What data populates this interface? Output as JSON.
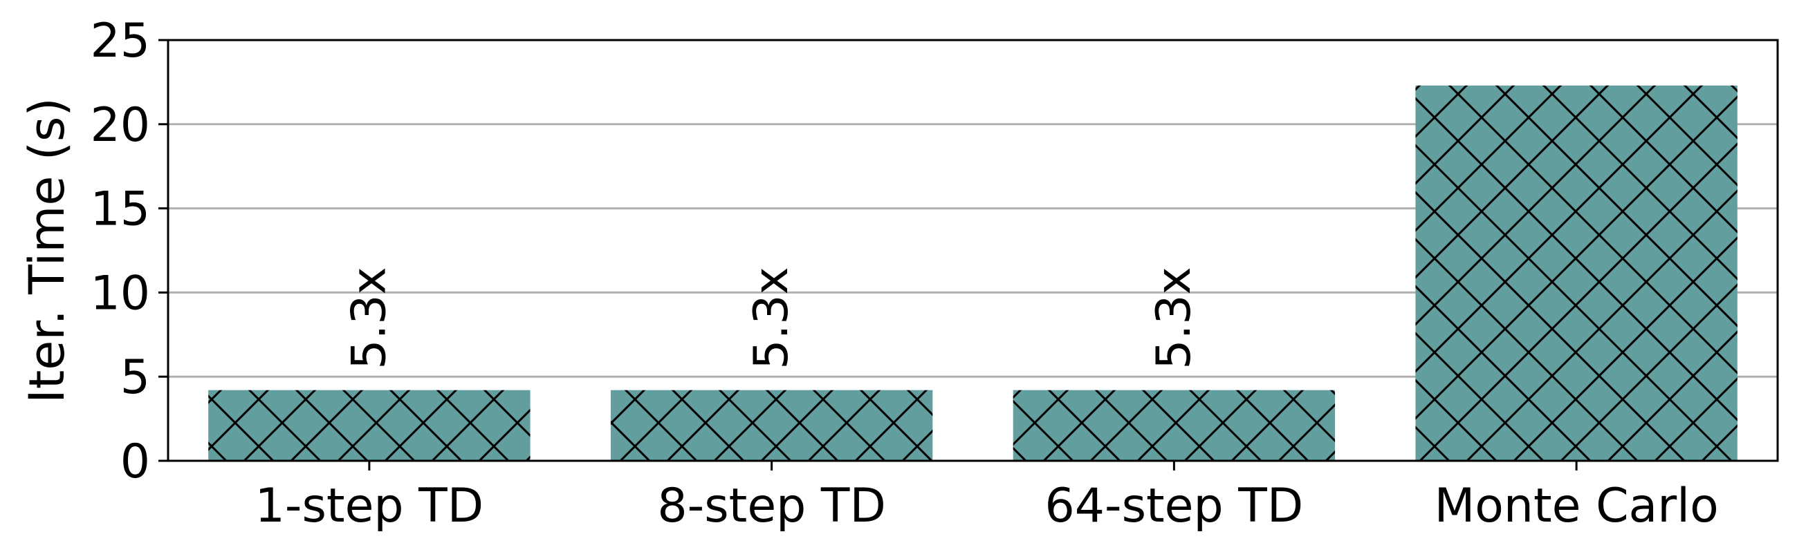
{
  "chart_data": {
    "type": "bar",
    "categories": [
      "1-step TD",
      "8-step TD",
      "64-step TD",
      "Monte Carlo"
    ],
    "values": [
      4.2,
      4.2,
      4.2,
      22.3
    ],
    "bar_labels": [
      "5.3x",
      "5.3x",
      "5.3x",
      ""
    ],
    "ylabel": "Iter. Time (s)",
    "xlabel": "",
    "title": "",
    "ylim": [
      0,
      25
    ],
    "yticks": [
      "0",
      "5",
      "10",
      "15",
      "20",
      "25"
    ],
    "grid": "horizontal",
    "bar_color": "#639e9f",
    "hatch": "crosshatch"
  }
}
